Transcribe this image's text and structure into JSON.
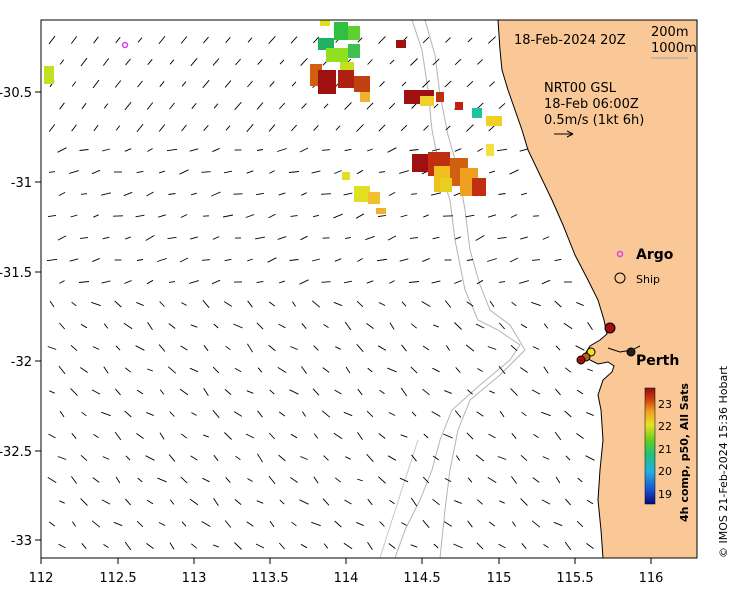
{
  "map": {
    "date_label": "18-Feb-2024 20Z",
    "isobath_legend": [
      "200m",
      "1000m"
    ],
    "current_title": "NRT00 GSL",
    "current_time": "18-Feb 06:00Z",
    "current_scale": "0.5m/s (1kt 6h)",
    "legend_argo": "Argo",
    "legend_ship": "Ship",
    "city_label": "Perth",
    "colorbar_title": "4h comp, p50, All Sats",
    "colorbar_ticks": [
      "23",
      "22",
      "21",
      "20",
      "19"
    ],
    "credit": "© IMOS 21-Feb-2024 15:36 Hobart",
    "x_ticks": [
      "112",
      "112.5",
      "113",
      "113.5",
      "114",
      "114.5",
      "115",
      "115.5",
      "116"
    ],
    "y_ticks": [
      "-30.5",
      "-31",
      "-31.5",
      "-32",
      "-32.5",
      "-33"
    ],
    "colors": {
      "land": "#fac896",
      "sst_warm": "#a01010",
      "sst_mid": "#f0c020",
      "sst_cool": "#20b020",
      "argo": "#e040e0"
    }
  }
}
